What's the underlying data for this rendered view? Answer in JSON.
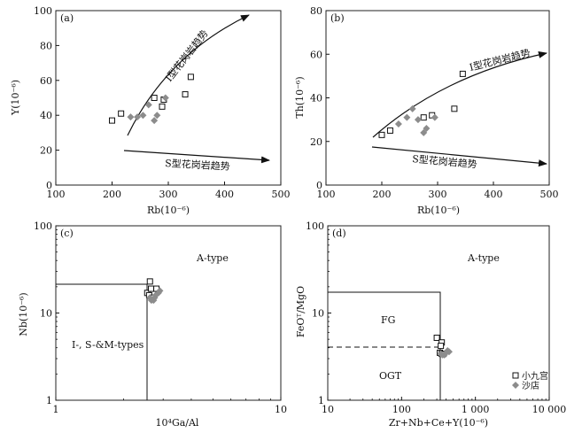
{
  "chart_data": [
    {
      "id": "a",
      "type": "scatter",
      "panel_label": "(a)",
      "xlabel": "Rb(10⁻⁶)",
      "ylabel": "Y(10⁻⁶)",
      "xlim": [
        100,
        500
      ],
      "ylim": [
        0,
        100
      ],
      "xticks": [
        "100",
        "200",
        "300",
        "400",
        "500"
      ],
      "yticks": [
        "0",
        "20",
        "40",
        "60",
        "80",
        "100"
      ],
      "annotations": [
        "I型花岗岩趋势",
        "S型花岗岩趋势"
      ],
      "series": [
        {
          "name": "小九宫",
          "marker": "open-square",
          "points": [
            [
              200,
              37
            ],
            [
              216,
              41
            ],
            [
              275,
              50
            ],
            [
              289,
              45
            ],
            [
              292,
              49
            ],
            [
              330,
              52
            ],
            [
              340,
              62
            ]
          ]
        },
        {
          "name": "沙店",
          "marker": "grey-diamond",
          "points": [
            [
              233,
              39
            ],
            [
              245,
              39
            ],
            [
              255,
              40
            ],
            [
              265,
              46
            ],
            [
              275,
              37
            ],
            [
              280,
              40
            ],
            [
              295,
              50
            ]
          ]
        }
      ]
    },
    {
      "id": "b",
      "type": "scatter",
      "panel_label": "(b)",
      "xlabel": "Rb(10⁻⁶)",
      "ylabel": "Th(10⁻⁶)",
      "xlim": [
        100,
        500
      ],
      "ylim": [
        0,
        80
      ],
      "xticks": [
        "100",
        "200",
        "300",
        "400",
        "500"
      ],
      "yticks": [
        "0",
        "20",
        "40",
        "60",
        "80"
      ],
      "annotations": [
        "I型花岗岩趋势",
        "S型花岗岩趋势"
      ],
      "series": [
        {
          "name": "小九宫",
          "marker": "open-square",
          "points": [
            [
              200,
              23
            ],
            [
              215,
              25
            ],
            [
              275,
              31
            ],
            [
              290,
              32
            ],
            [
              330,
              35
            ],
            [
              345,
              51
            ]
          ]
        },
        {
          "name": "沙店",
          "marker": "grey-diamond",
          "points": [
            [
              230,
              28
            ],
            [
              245,
              31
            ],
            [
              255,
              35
            ],
            [
              265,
              30
            ],
            [
              275,
              24
            ],
            [
              280,
              26
            ],
            [
              295,
              31
            ]
          ]
        }
      ]
    },
    {
      "id": "c",
      "type": "scatter",
      "panel_label": "(c)",
      "xlabel": "10⁴Ga/Al",
      "ylabel": "Nb(10⁻⁶)",
      "xscale": "log",
      "yscale": "log",
      "xlim": [
        1,
        10
      ],
      "ylim": [
        1,
        100
      ],
      "xticks": [
        "1",
        "10"
      ],
      "yticks": [
        "1",
        "10",
        "100"
      ],
      "region_labels": [
        "A-type",
        "I-, S-&M-types"
      ],
      "series": [
        {
          "name": "小九宫",
          "marker": "open-square",
          "points": [
            [
              2.55,
              17
            ],
            [
              2.62,
              23
            ],
            [
              2.65,
              19
            ],
            [
              2.8,
              19
            ],
            [
              2.6,
              16
            ],
            [
              2.7,
              15
            ]
          ]
        },
        {
          "name": "沙店",
          "marker": "grey-diamond",
          "points": [
            [
              2.62,
              15
            ],
            [
              2.66,
              14
            ],
            [
              2.72,
              14
            ],
            [
              2.75,
              15
            ],
            [
              2.78,
              16
            ],
            [
              2.86,
              17
            ],
            [
              2.9,
              18
            ]
          ]
        }
      ]
    },
    {
      "id": "d",
      "type": "scatter",
      "panel_label": "(d)",
      "xlabel": "Zr+Nb+Ce+Y(10⁻⁶)",
      "ylabel": "FeOᵀ/MgO",
      "xscale": "log",
      "yscale": "log",
      "xlim": [
        10,
        10000
      ],
      "ylim": [
        1,
        100
      ],
      "xticks": [
        "10",
        "100",
        "1 000",
        "10 000"
      ],
      "yticks": [
        "1",
        "10",
        "100"
      ],
      "region_labels": [
        "A-type",
        "FG",
        "OGT"
      ],
      "legend": [
        {
          "label": "小九宫",
          "marker": "open-square"
        },
        {
          "label": "沙店",
          "marker": "grey-diamond"
        }
      ],
      "series": [
        {
          "name": "小九宫",
          "marker": "open-square",
          "points": [
            [
              300,
              5.2
            ],
            [
              350,
              4.6
            ],
            [
              340,
              4.2
            ],
            [
              330,
              3.5
            ],
            [
              350,
              3.4
            ],
            [
              370,
              3.4
            ]
          ]
        },
        {
          "name": "沙店",
          "marker": "grey-diamond",
          "points": [
            [
              340,
              3.4
            ],
            [
              360,
              3.3
            ],
            [
              380,
              3.3
            ],
            [
              400,
              3.5
            ],
            [
              420,
              3.7
            ],
            [
              440,
              3.6
            ]
          ]
        }
      ]
    }
  ]
}
